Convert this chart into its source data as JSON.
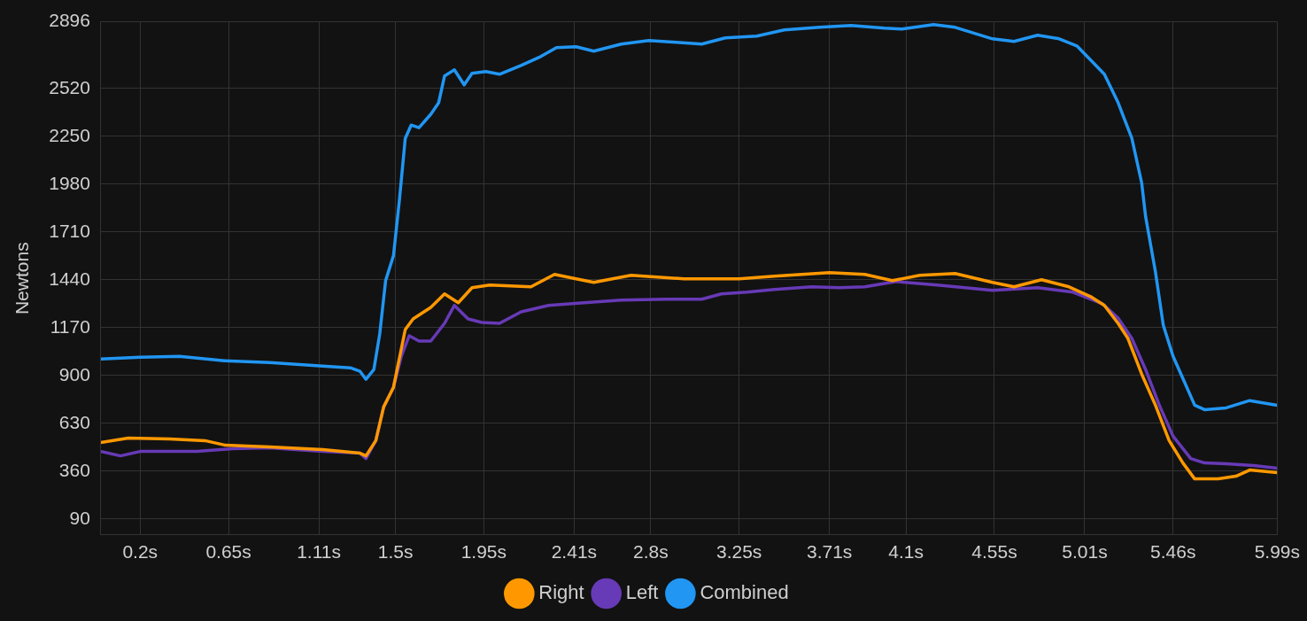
{
  "chart_data": {
    "type": "line",
    "ylabel": "Newtons",
    "xlim": [
      0,
      5.99
    ],
    "ylim": [
      0,
      2896
    ],
    "xticks": [
      {
        "value": 0.2,
        "label": "0.2s"
      },
      {
        "value": 0.65,
        "label": "0.65s"
      },
      {
        "value": 1.11,
        "label": "1.11s"
      },
      {
        "value": 1.5,
        "label": "1.5s"
      },
      {
        "value": 1.95,
        "label": "1.95s"
      },
      {
        "value": 2.41,
        "label": "2.41s"
      },
      {
        "value": 2.8,
        "label": "2.8s"
      },
      {
        "value": 3.25,
        "label": "3.25s"
      },
      {
        "value": 3.71,
        "label": "3.71s"
      },
      {
        "value": 4.1,
        "label": "4.1s"
      },
      {
        "value": 4.55,
        "label": "4.55s"
      },
      {
        "value": 5.01,
        "label": "5.01s"
      },
      {
        "value": 5.46,
        "label": "5.46s"
      },
      {
        "value": 5.99,
        "label": "5.99s"
      }
    ],
    "yticks": [
      90,
      360,
      630,
      900,
      1170,
      1440,
      1710,
      1980,
      2250,
      2520,
      2896
    ],
    "grid": true,
    "legend": "bottom",
    "marker": "none",
    "line_style": "solid",
    "series": [
      {
        "name": "Right",
        "color": "#ff9800",
        "x": [
          0,
          0.14,
          0.35,
          0.53,
          0.63,
          0.86,
          1.13,
          1.32,
          1.35,
          1.4,
          1.44,
          1.49,
          1.55,
          1.59,
          1.68,
          1.75,
          1.82,
          1.89,
          1.98,
          2.19,
          2.31,
          2.42,
          2.51,
          2.7,
          2.97,
          3.25,
          3.43,
          3.71,
          3.89,
          4.03,
          4.17,
          4.35,
          4.54,
          4.65,
          4.79,
          4.93,
          5.04,
          5.11,
          5.18,
          5.23,
          5.3,
          5.37,
          5.44,
          5.51,
          5.57,
          5.69,
          5.78,
          5.85,
          5.99
        ],
        "values": [
          522,
          547,
          542,
          532,
          507,
          497,
          481,
          461,
          446,
          532,
          722,
          833,
          1159,
          1219,
          1284,
          1360,
          1310,
          1395,
          1410,
          1400,
          1470,
          1445,
          1425,
          1465,
          1445,
          1445,
          1460,
          1480,
          1470,
          1435,
          1465,
          1475,
          1425,
          1400,
          1440,
          1400,
          1345,
          1295,
          1194,
          1109,
          908,
          732,
          532,
          406,
          316,
          316,
          331,
          366,
          351
        ]
      },
      {
        "name": "Left",
        "color": "#673ab7",
        "x": [
          0,
          0.1,
          0.2,
          0.49,
          0.67,
          0.86,
          1.13,
          1.32,
          1.35,
          1.4,
          1.44,
          1.49,
          1.53,
          1.57,
          1.62,
          1.68,
          1.75,
          1.8,
          1.87,
          1.94,
          2.03,
          2.14,
          2.28,
          2.46,
          2.65,
          2.88,
          3.06,
          3.16,
          3.29,
          3.43,
          3.62,
          3.76,
          3.89,
          4.05,
          4.26,
          4.54,
          4.77,
          4.95,
          5.1,
          5.18,
          5.25,
          5.32,
          5.39,
          5.46,
          5.55,
          5.62,
          5.73,
          5.87,
          5.99
        ],
        "values": [
          471,
          446,
          471,
          471,
          486,
          491,
          471,
          461,
          431,
          532,
          722,
          833,
          1008,
          1124,
          1094,
          1094,
          1194,
          1295,
          1219,
          1199,
          1194,
          1259,
          1295,
          1310,
          1325,
          1330,
          1330,
          1360,
          1370,
          1385,
          1400,
          1395,
          1400,
          1430,
          1410,
          1380,
          1395,
          1370,
          1305,
          1224,
          1109,
          933,
          732,
          557,
          431,
          406,
          401,
          391,
          376
        ]
      },
      {
        "name": "Combined",
        "color": "#2196f3",
        "x": [
          0,
          0.2,
          0.4,
          0.63,
          0.86,
          1.13,
          1.27,
          1.32,
          1.35,
          1.39,
          1.42,
          1.45,
          1.49,
          1.52,
          1.55,
          1.58,
          1.62,
          1.68,
          1.72,
          1.75,
          1.8,
          1.85,
          1.89,
          1.96,
          2.03,
          2.14,
          2.24,
          2.32,
          2.42,
          2.51,
          2.65,
          2.79,
          2.93,
          3.06,
          3.18,
          3.34,
          3.48,
          3.66,
          3.82,
          3.99,
          4.08,
          4.24,
          4.35,
          4.54,
          4.65,
          4.77,
          4.88,
          4.97,
          5.04,
          5.11,
          5.18,
          5.25,
          5.3,
          5.32,
          5.37,
          5.41,
          5.46,
          5.51,
          5.57,
          5.62,
          5.73,
          5.85,
          5.99
        ],
        "values": [
          993,
          1003,
          1008,
          983,
          973,
          953,
          943,
          923,
          878,
          933,
          1134,
          1435,
          1576,
          1887,
          2238,
          2313,
          2298,
          2374,
          2439,
          2590,
          2625,
          2540,
          2605,
          2615,
          2600,
          2650,
          2700,
          2750,
          2755,
          2730,
          2770,
          2790,
          2780,
          2770,
          2805,
          2815,
          2850,
          2865,
          2875,
          2860,
          2855,
          2880,
          2865,
          2800,
          2785,
          2820,
          2800,
          2760,
          2680,
          2600,
          2440,
          2238,
          1987,
          1797,
          1485,
          1184,
          1008,
          883,
          732,
          707,
          717,
          758,
          732
        ]
      }
    ]
  }
}
